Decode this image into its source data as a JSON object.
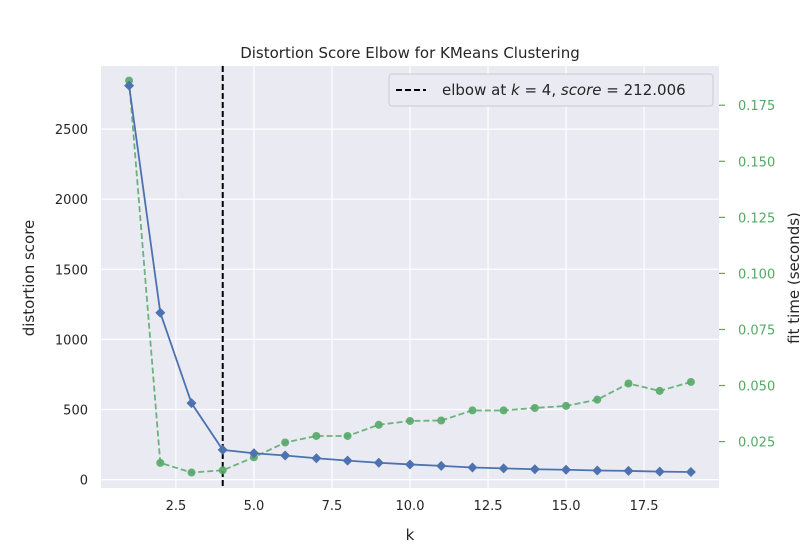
{
  "chart_data": {
    "type": "line",
    "title": "Distortion Score Elbow for KMeans Clustering",
    "xlabel": "k",
    "ylabel": "distortion score",
    "ylabel_right": "fit time (seconds)",
    "xlim": [
      0.1,
      19.9
    ],
    "ylim": [
      -60,
      2950
    ],
    "ylim_right": [
      0.0043,
      0.1925
    ],
    "x_ticks": [
      2.5,
      5.0,
      7.5,
      10.0,
      12.5,
      15.0,
      17.5
    ],
    "x_tick_labels": [
      "2.5",
      "5.0",
      "7.5",
      "10.0",
      "12.5",
      "15.0",
      "17.5"
    ],
    "y_ticks": [
      0,
      500,
      1000,
      1500,
      2000,
      2500
    ],
    "y_tick_labels": [
      "0",
      "500",
      "1000",
      "1500",
      "2000",
      "2500"
    ],
    "y2_ticks": [
      0.025,
      0.05,
      0.075,
      0.1,
      0.125,
      0.15,
      0.175
    ],
    "y2_tick_labels": [
      "0.025",
      "0.050",
      "0.075",
      "0.100",
      "0.125",
      "0.150",
      "0.175"
    ],
    "grid": true,
    "legend_position": "top-right",
    "legend_prefix": "elbow at ",
    "legend_k_label": "k",
    "legend_k_value": "4",
    "legend_score_label": "score",
    "legend_score_value": "212.006",
    "elbow_k": 4,
    "series": [
      {
        "axis": "left",
        "color": "#4c72b0",
        "marker": "diamond",
        "x": [
          1,
          2,
          3,
          4,
          5,
          6,
          7,
          8,
          9,
          10,
          11,
          12,
          13,
          14,
          15,
          16,
          17,
          18,
          19
        ],
        "values": [
          2810,
          1190,
          545,
          212,
          188,
          172,
          152,
          135,
          120,
          108,
          98,
          86,
          80,
          74,
          70,
          65,
          62,
          57,
          54
        ]
      },
      {
        "axis": "right",
        "color": "#55a868",
        "marker": "circle",
        "dashed": true,
        "x": [
          1,
          2,
          3,
          4,
          5,
          6,
          7,
          8,
          9,
          10,
          11,
          12,
          13,
          14,
          15,
          16,
          17,
          18,
          19
        ],
        "values": [
          0.186,
          0.0155,
          0.0112,
          0.0122,
          0.018,
          0.0246,
          0.0275,
          0.0275,
          0.0325,
          0.0342,
          0.0344,
          0.0389,
          0.0389,
          0.04,
          0.0409,
          0.0437,
          0.0509,
          0.0476,
          0.0516
        ]
      }
    ],
    "colors": {
      "background": "#eaeaf2",
      "grid": "#ffffff",
      "distortion": "#4c72b0",
      "fit_time": "#55a868",
      "elbow_line": "#000000"
    }
  }
}
